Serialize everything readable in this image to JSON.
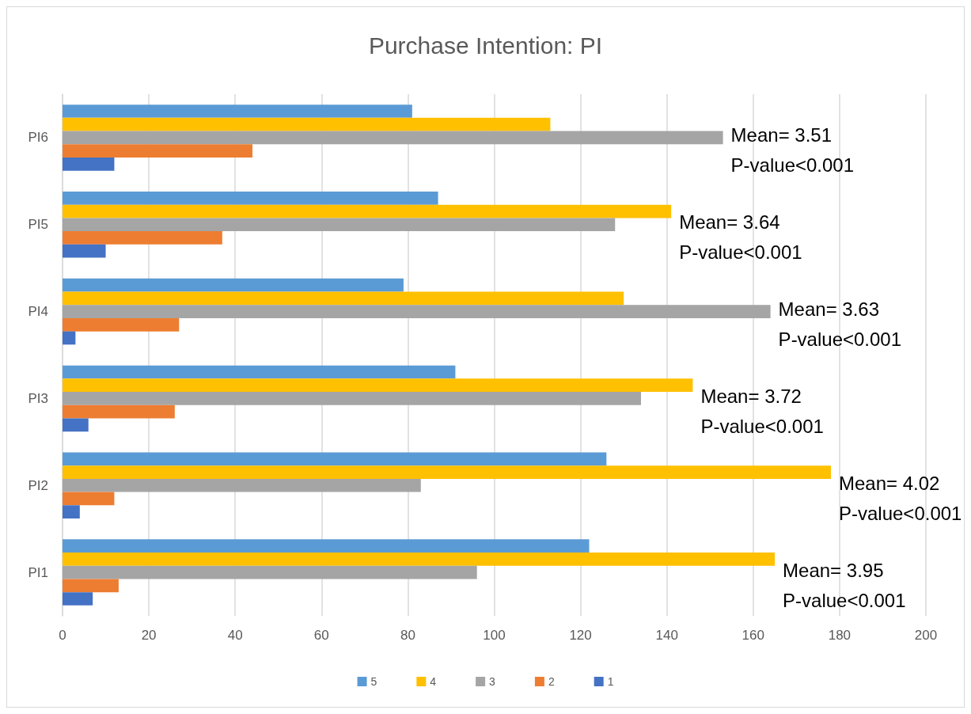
{
  "chart_data": {
    "type": "bar",
    "orientation": "horizontal",
    "title": "Purchase Intention: PI",
    "categories": [
      "PI6",
      "PI5",
      "PI4",
      "PI3",
      "PI2",
      "PI1"
    ],
    "series": [
      {
        "name": "5",
        "color": "#5b9bd5",
        "values": [
          81,
          87,
          79,
          91,
          126,
          122
        ]
      },
      {
        "name": "4",
        "color": "#ffc000",
        "values": [
          113,
          141,
          130,
          146,
          178,
          165
        ]
      },
      {
        "name": "3",
        "color": "#a5a5a5",
        "values": [
          153,
          128,
          164,
          134,
          83,
          96
        ]
      },
      {
        "name": "2",
        "color": "#ed7d31",
        "values": [
          44,
          37,
          27,
          26,
          12,
          13
        ]
      },
      {
        "name": "1",
        "color": "#4472c4",
        "values": [
          12,
          10,
          3,
          6,
          4,
          7
        ]
      }
    ],
    "xlim": [
      0,
      200
    ],
    "xticks": [
      0,
      20,
      40,
      60,
      80,
      100,
      120,
      140,
      160,
      180,
      200
    ],
    "grid": "x",
    "legend": "bottom",
    "annotations": [
      "Mean= 3.51\nP-value<0.001",
      "Mean= 3.64\nP-value<0.001",
      "Mean= 3.63\nP-value<0.001",
      "Mean= 3.72\nP-value<0.001",
      "Mean= 4.02\nP-value<0.001",
      "Mean= 3.95\nP-value<0.001"
    ]
  }
}
